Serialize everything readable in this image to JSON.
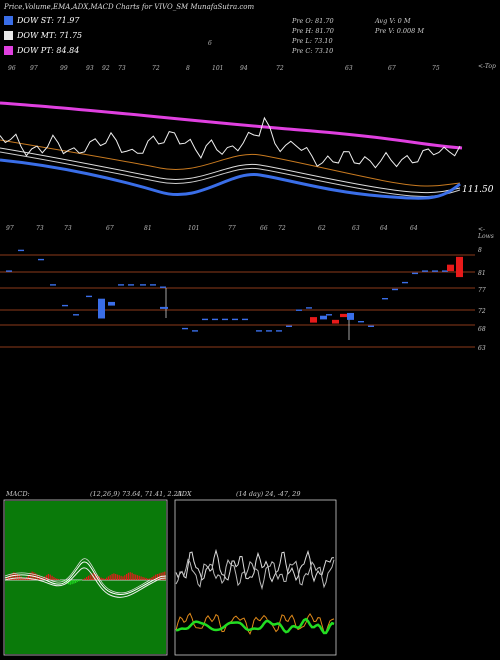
{
  "header": {
    "title": "Price,Volume,EMA,ADX,MACD Charts for VIVO_SM MunafaSutra.com"
  },
  "legend": [
    {
      "label": "DOW ST: 71.97",
      "color": "#3a6ee8"
    },
    {
      "label": "DOW MT: 71.75",
      "color": "#e8e8e8"
    },
    {
      "label": "DOW PT: 84.84",
      "color": "#e040e0"
    }
  ],
  "price_info": {
    "open": "Pre O: 81.70",
    "high": "Pre H: 81.70",
    "low": "Pre L: 73.10",
    "close": "Pre C: 73.10",
    "avg_vol": "Avg V: 0 M",
    "pre_vol": "Pre V: 0.008 M"
  },
  "top_label": "<-Top",
  "lows_label": "<-Lows",
  "current_label": "111.50",
  "marker_top": "6",
  "top_numbers": [
    "96",
    "97",
    "99",
    "93",
    "92",
    "73",
    "72",
    "8",
    "101",
    "94",
    "72",
    "63",
    "67",
    "75"
  ],
  "low_numbers": [
    "97",
    "73",
    "73",
    "67",
    "81",
    "101",
    "77",
    "66",
    "72",
    "62",
    "63",
    "64",
    "64"
  ],
  "y_labels": [
    "8",
    "81",
    "77",
    "72",
    "68",
    "63"
  ],
  "macd": {
    "label": "MACD:",
    "values": "(12,26,9) 73.64, 71.41, 2.23"
  },
  "adx": {
    "label": "ADX",
    "values": "(14 day) 24, -47, 29"
  },
  "chart_data": {
    "type": "line",
    "series": [
      {
        "name": "DOW ST",
        "color": "#3a6ee8"
      },
      {
        "name": "DOW MT",
        "color": "#e8e8e8"
      },
      {
        "name": "DOW PT",
        "color": "#e040e0"
      }
    ],
    "price_line": [
      150,
      152,
      160,
      158,
      165,
      178,
      182,
      176,
      172,
      166,
      160,
      165,
      172,
      178,
      183,
      178,
      170,
      168,
      164,
      160,
      158,
      155,
      162,
      170,
      178,
      186,
      180,
      172,
      165,
      160,
      158,
      156,
      152,
      150,
      155,
      162,
      168,
      175,
      180,
      172,
      168,
      170,
      176,
      180,
      175,
      168,
      160,
      155,
      150,
      140,
      120,
      145,
      160,
      170,
      175,
      168,
      160,
      172,
      182,
      190,
      195,
      200,
      198,
      195,
      190,
      185,
      188,
      192,
      195,
      198,
      200,
      198,
      195,
      192,
      194,
      196,
      198,
      196,
      193,
      190,
      186,
      180,
      175,
      178,
      182,
      180,
      176,
      172
    ],
    "candles": [
      {
        "t": "flat",
        "level": 71.5,
        "color": "#3a6ee8"
      },
      {
        "t": "box",
        "open": 73.5,
        "close": 69.2,
        "color": "#3a6ee8"
      },
      {
        "t": "box",
        "open": 72.8,
        "close": 72.0,
        "color": "#3a6ee8"
      },
      {
        "t": "box",
        "open": 69.5,
        "close": 68.3,
        "color": "#e81a1a"
      },
      {
        "t": "box",
        "open": 69.8,
        "close": 69.0,
        "color": "#3a6ee8"
      },
      {
        "t": "box",
        "open": 68.9,
        "close": 68.1,
        "color": "#e81a1a"
      },
      {
        "t": "box",
        "open": 70.2,
        "close": 69.5,
        "color": "#e81a1a"
      },
      {
        "t": "box",
        "open": 70.4,
        "close": 68.9,
        "color": "#3a6ee8"
      },
      {
        "t": "box",
        "open": 79.5,
        "close": 80.9,
        "color": "#e81a1a"
      },
      {
        "t": "box",
        "open": 78.2,
        "close": 82.6,
        "color": "#e81a1a"
      }
    ],
    "macd_hist": [
      0.4,
      0.6,
      0.9,
      1.1,
      1.3,
      1.2,
      1.0,
      0.8,
      0.6,
      0.4,
      0.3,
      0.5,
      0.8,
      1.2,
      1.4,
      1.3,
      1.1,
      0.9,
      0.7,
      0.5,
      0.4,
      0.6,
      0.8,
      1.0,
      0.9,
      0.7,
      0.5,
      0.3,
      0.2,
      0.1,
      -0.1,
      -0.2,
      -0.4,
      -0.6,
      -0.7,
      -0.8,
      -0.7,
      -0.6,
      -0.5,
      -0.3,
      -0.2,
      -0.1,
      0.1,
      0.3,
      0.5,
      0.7,
      0.9,
      1.1,
      1.2,
      1.0,
      0.8,
      0.6,
      0.4,
      0.3,
      0.2,
      0.4,
      0.6,
      0.8,
      1.0,
      1.1,
      1.0,
      0.9,
      0.8,
      0.7,
      0.6,
      0.8,
      1.0,
      1.2,
      1.3,
      1.2,
      1.0,
      0.9,
      0.8,
      0.7,
      0.6,
      0.5,
      0.4,
      0.3,
      0.2,
      0.3,
      0.5,
      0.7,
      0.9,
      1.0,
      1.1,
      1.2,
      1.3,
      1.4
    ]
  }
}
